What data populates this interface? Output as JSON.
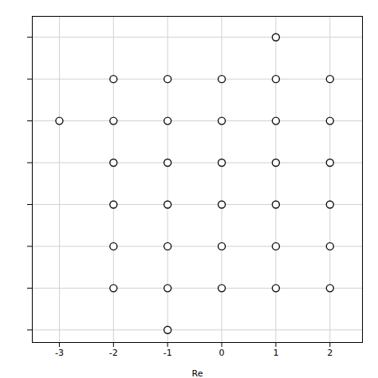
{
  "chart_data": {
    "type": "scatter",
    "xlabel": "Re",
    "x": [
      1,
      -2,
      -1,
      0,
      1,
      2,
      -3,
      -2,
      -1,
      0,
      1,
      2,
      -2,
      -1,
      0,
      1,
      2,
      -2,
      -1,
      0,
      1,
      2,
      -2,
      -1,
      0,
      1,
      2,
      -2,
      -1,
      0,
      1,
      2,
      -1
    ],
    "values": [
      7,
      6,
      6,
      6,
      6,
      6,
      5,
      5,
      5,
      5,
      5,
      5,
      4,
      4,
      4,
      4,
      4,
      3,
      3,
      3,
      3,
      3,
      2,
      2,
      2,
      2,
      2,
      1,
      1,
      1,
      1,
      1,
      0
    ],
    "color": "#111111",
    "marker": "circle",
    "xlim": [
      -3.5,
      2.6
    ],
    "ylim": [
      -0.3,
      7.5
    ],
    "xticks": [
      -3,
      -2,
      -1,
      0,
      1,
      2
    ],
    "yticks": [
      0,
      1,
      2,
      3,
      4,
      5,
      6,
      7
    ],
    "grid": true,
    "tick_labels": "x"
  }
}
